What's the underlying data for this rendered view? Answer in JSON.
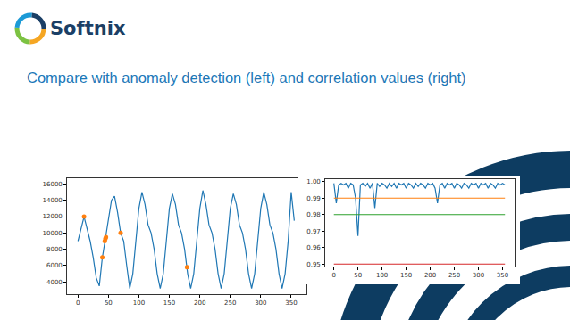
{
  "slide": {
    "logo": "Softnix",
    "title": "Compare with anomaly detection (left) and correlation values (right)"
  },
  "chart_data": [
    {
      "type": "line",
      "x": [
        0,
        5,
        10,
        15,
        20,
        25,
        30,
        35,
        40,
        45,
        50,
        55,
        60,
        65,
        70,
        75,
        80,
        85,
        90,
        95,
        100,
        105,
        110,
        115,
        120,
        125,
        130,
        135,
        140,
        145,
        150,
        155,
        160,
        165,
        170,
        175,
        180,
        185,
        190,
        195,
        200,
        205,
        210,
        215,
        220,
        225,
        230,
        235,
        240,
        245,
        250,
        255,
        260,
        265,
        270,
        275,
        280,
        285,
        290,
        295,
        300,
        305,
        310,
        315,
        320,
        325,
        330,
        335,
        340,
        345,
        350,
        355
      ],
      "series": [
        {
          "type": "line",
          "color": "#1f77b4",
          "values": [
            9000,
            10500,
            12000,
            10500,
            9000,
            7000,
            4500,
            3500,
            7000,
            9300,
            11500,
            14000,
            14500,
            12500,
            10000,
            9000,
            6000,
            3200,
            5000,
            9000,
            13000,
            15000,
            13500,
            11000,
            10000,
            8000,
            5000,
            3200,
            5000,
            9000,
            13000,
            14800,
            13500,
            11000,
            10000,
            8000,
            5000,
            3200,
            5000,
            9000,
            13000,
            15200,
            13500,
            11000,
            10000,
            8000,
            5000,
            3200,
            5000,
            9000,
            13000,
            14800,
            13500,
            11000,
            10000,
            8000,
            5000,
            3200,
            5000,
            9000,
            13000,
            15000,
            13500,
            11000,
            10000,
            8000,
            5000,
            3200,
            5000,
            9000,
            15000,
            11500
          ]
        },
        {
          "type": "scatter",
          "color": "#ff7f0e",
          "marker": "circle",
          "x": [
            10,
            40,
            44,
            45,
            46,
            70,
            179
          ],
          "values": [
            12000,
            7000,
            9000,
            9300,
            9500,
            10000,
            5800
          ]
        }
      ],
      "xlim": [
        -18,
        375
      ],
      "xticks": [
        0,
        50,
        100,
        150,
        200,
        250,
        300,
        350
      ],
      "ylim": [
        2500,
        16700
      ],
      "yticks": [
        4000,
        6000,
        8000,
        10000,
        12000,
        14000,
        16000
      ],
      "grid": false
    },
    {
      "type": "line",
      "x": [
        0,
        5,
        10,
        15,
        20,
        25,
        30,
        35,
        40,
        45,
        50,
        55,
        60,
        65,
        70,
        75,
        80,
        85,
        90,
        95,
        100,
        105,
        110,
        115,
        120,
        125,
        130,
        135,
        140,
        145,
        150,
        155,
        160,
        165,
        170,
        175,
        180,
        185,
        190,
        195,
        200,
        205,
        210,
        215,
        220,
        225,
        230,
        235,
        240,
        245,
        250,
        255,
        260,
        265,
        270,
        275,
        280,
        285,
        290,
        295,
        300,
        305,
        310,
        315,
        320,
        325,
        330,
        335,
        340,
        345,
        350,
        355
      ],
      "series": [
        {
          "type": "line",
          "color": "#1f77b4",
          "values": [
            0.999,
            0.987,
            0.998,
            0.999,
            0.998,
            0.999,
            0.996,
            0.999,
            0.998,
            0.99,
            0.967,
            0.998,
            0.999,
            0.997,
            0.999,
            0.996,
            0.999,
            0.984,
            0.999,
            0.997,
            0.999,
            0.998,
            0.996,
            0.999,
            0.997,
            0.999,
            0.996,
            0.999,
            0.998,
            0.999,
            0.996,
            0.999,
            0.998,
            0.996,
            0.999,
            0.997,
            0.999,
            0.998,
            0.996,
            0.999,
            0.998,
            0.999,
            0.996,
            0.987,
            0.998,
            0.999,
            0.996,
            0.999,
            0.998,
            0.999,
            0.996,
            0.999,
            0.998,
            0.996,
            0.999,
            0.998,
            0.996,
            0.999,
            0.998,
            0.999,
            0.996,
            0.999,
            0.998,
            0.999,
            0.996,
            0.999,
            0.998,
            0.996,
            0.999,
            0.998,
            0.999,
            0.998
          ]
        },
        {
          "type": "line",
          "color": "#ff7f0e",
          "x": [
            0,
            355
          ],
          "values": [
            0.99,
            0.99
          ]
        },
        {
          "type": "line",
          "color": "#2ca02c",
          "x": [
            0,
            355
          ],
          "values": [
            0.98,
            0.98
          ]
        },
        {
          "type": "line",
          "color": "#d62728",
          "x": [
            0,
            355
          ],
          "values": [
            0.95,
            0.95
          ]
        }
      ],
      "xlim": [
        -18,
        375
      ],
      "xticks": [
        0,
        50,
        100,
        150,
        200,
        250,
        300,
        350
      ],
      "ylim": [
        0.9485,
        1.0015
      ],
      "yticks": [
        0.95,
        0.96,
        0.97,
        0.98,
        0.99,
        {
          "value": 1,
          "label": "1.00"
        }
      ],
      "grid": false
    }
  ]
}
